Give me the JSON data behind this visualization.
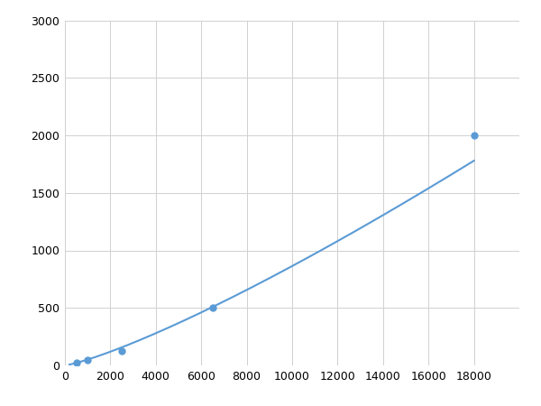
{
  "x_points": [
    500,
    1000,
    2500,
    6500,
    18000
  ],
  "y_points": [
    25,
    50,
    125,
    500,
    2000
  ],
  "line_color": "#5b9bd5",
  "marker_color": "#5b9bd5",
  "marker_size": 5,
  "marker_style": "o",
  "line_width": 1.5,
  "xlim": [
    0,
    20000
  ],
  "ylim": [
    0,
    3000
  ],
  "xticks": [
    0,
    2000,
    4000,
    6000,
    8000,
    10000,
    12000,
    14000,
    16000,
    18000
  ],
  "yticks": [
    0,
    500,
    1000,
    1500,
    2000,
    2500,
    3000
  ],
  "grid": true,
  "grid_color": "#d0d0d0",
  "grid_linestyle": "-",
  "grid_linewidth": 0.7,
  "background_color": "#ffffff",
  "fig_width": 6.0,
  "fig_height": 4.5,
  "dpi": 100,
  "power_a": 0.05,
  "power_b": 1.2
}
